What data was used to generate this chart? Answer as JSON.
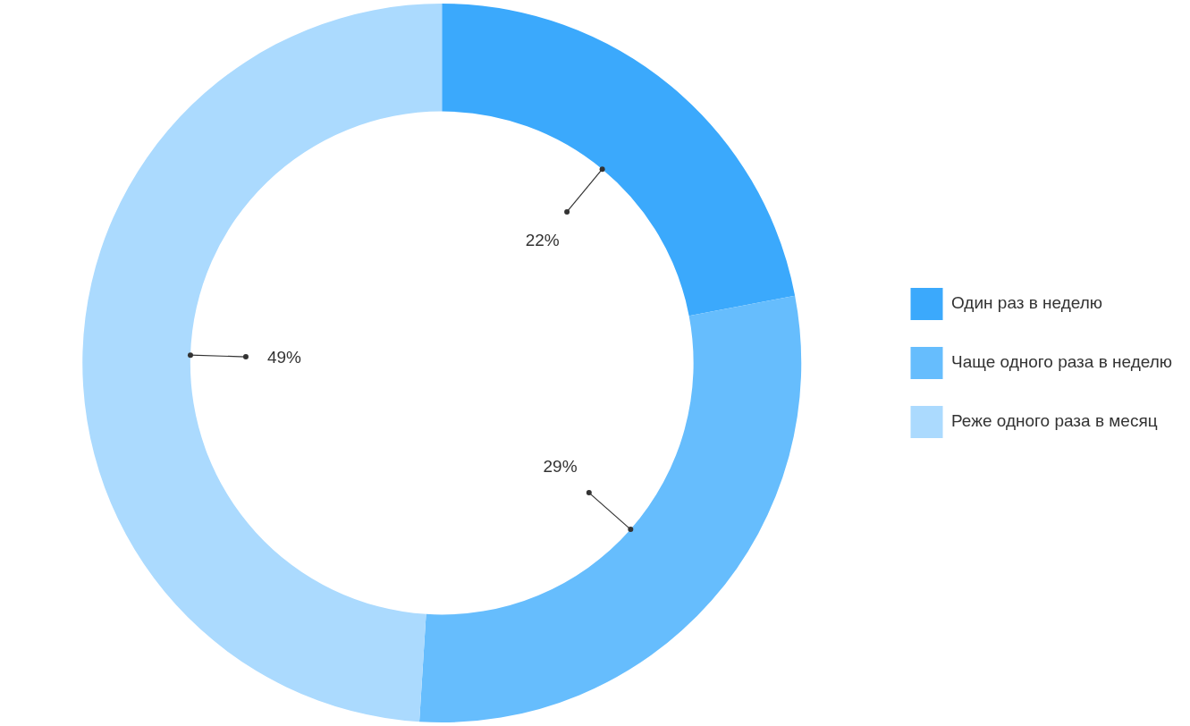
{
  "chart_data": {
    "type": "donut",
    "categories": [
      "Один раз в неделю",
      "Чаще одного раза в неделю",
      "Реже одного раза в месяц"
    ],
    "values": [
      22,
      29,
      49
    ],
    "colors": [
      "#3ba9fc",
      "#66bdfd",
      "#abdafe"
    ],
    "value_labels": [
      "22%",
      "29%",
      "49%"
    ],
    "legend": "right"
  }
}
